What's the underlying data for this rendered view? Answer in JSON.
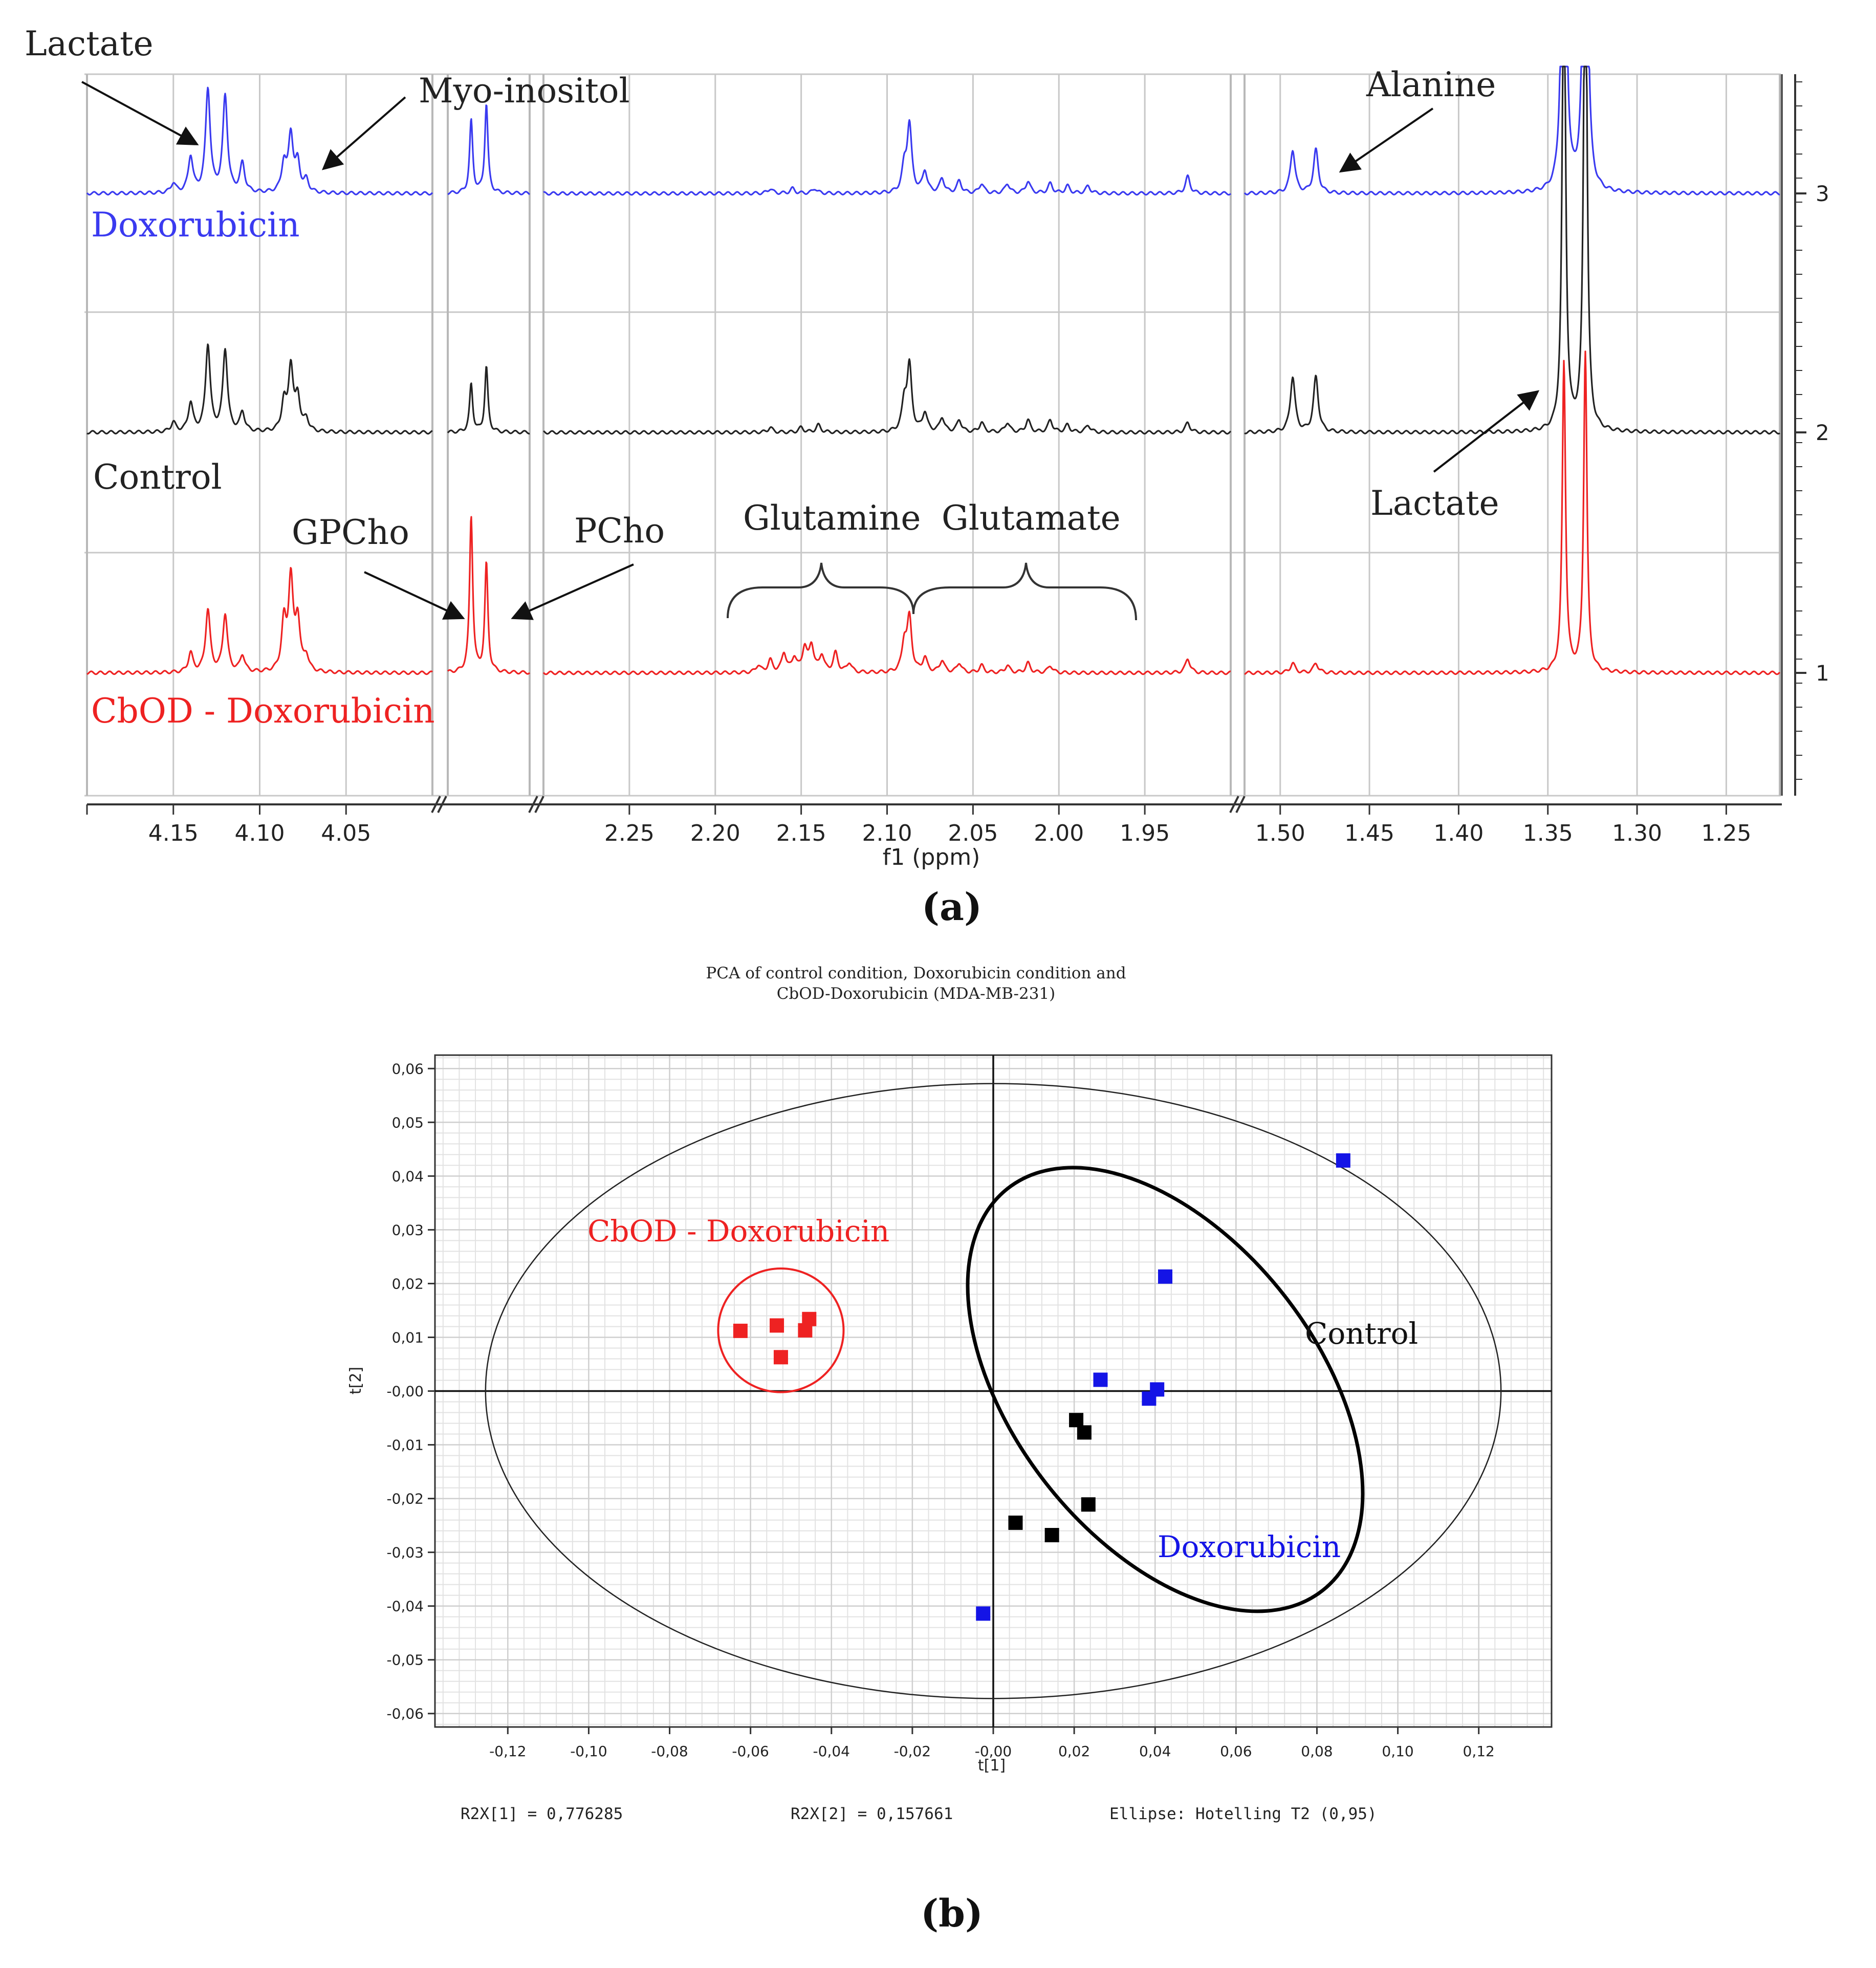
{
  "colors": {
    "doxorubicin": "#3a3af0",
    "control": "#222222",
    "cbod": "#ee2222",
    "grid": "#c8c8c8",
    "axis": "#000000"
  },
  "chart_data": [
    {
      "id": "a",
      "type": "line",
      "panel_label": "(a)",
      "xlabel": "f1 (ppm)",
      "segments": [
        {
          "name": "seg1",
          "range": [
            4.2,
            4.0
          ],
          "ticks": [
            4.15,
            4.1,
            4.05
          ],
          "tick_labels": [
            "4.15",
            "4.10",
            "4.05"
          ]
        },
        {
          "name": "seg2",
          "range": [
            3.65,
            3.58
          ],
          "ticks": [],
          "tick_labels": []
        },
        {
          "name": "seg3",
          "range": [
            2.3,
            1.9
          ],
          "ticks": [
            2.25,
            2.2,
            2.15,
            2.1,
            2.05,
            2.0,
            1.95
          ],
          "tick_labels": [
            "2.25",
            "2.20",
            "2.15",
            "2.10",
            "2.05",
            "2.00",
            "1.95"
          ]
        },
        {
          "name": "seg4",
          "range": [
            1.52,
            1.22
          ],
          "ticks": [
            1.5,
            1.45,
            1.4,
            1.35,
            1.3,
            1.25
          ],
          "tick_labels": [
            "1.50",
            "1.45",
            "1.40",
            "1.35",
            "1.30",
            "1.25"
          ]
        }
      ],
      "right_axis_labels": [
        "3",
        "2",
        "1"
      ],
      "series": [
        {
          "name": "Doxorubicin",
          "label": "Doxorubicin",
          "color": "#3a3af0",
          "offset": 3,
          "peaks": [
            {
              "seg": 0,
              "ppm": 4.15,
              "h": 0.04
            },
            {
              "seg": 0,
              "ppm": 4.14,
              "h": 0.15
            },
            {
              "seg": 0,
              "ppm": 4.13,
              "h": 0.43
            },
            {
              "seg": 0,
              "ppm": 4.12,
              "h": 0.4
            },
            {
              "seg": 0,
              "ppm": 4.11,
              "h": 0.12
            },
            {
              "seg": 0,
              "ppm": 4.086,
              "h": 0.12
            },
            {
              "seg": 0,
              "ppm": 4.082,
              "h": 0.24
            },
            {
              "seg": 0,
              "ppm": 4.078,
              "h": 0.12
            },
            {
              "seg": 0,
              "ppm": 4.073,
              "h": 0.05
            },
            {
              "seg": 1,
              "ppm": 3.63,
              "h": 0.3
            },
            {
              "seg": 1,
              "ppm": 3.617,
              "h": 0.37
            },
            {
              "seg": 2,
              "ppm": 2.168,
              "h": 0.02
            },
            {
              "seg": 2,
              "ppm": 2.155,
              "h": 0.02
            },
            {
              "seg": 2,
              "ppm": 2.142,
              "h": 0.02
            },
            {
              "seg": 2,
              "ppm": 2.09,
              "h": 0.1
            },
            {
              "seg": 2,
              "ppm": 2.087,
              "h": 0.28
            },
            {
              "seg": 2,
              "ppm": 2.078,
              "h": 0.09
            },
            {
              "seg": 2,
              "ppm": 2.068,
              "h": 0.06
            },
            {
              "seg": 2,
              "ppm": 2.058,
              "h": 0.05
            },
            {
              "seg": 2,
              "ppm": 2.045,
              "h": 0.04
            },
            {
              "seg": 2,
              "ppm": 2.03,
              "h": 0.04
            },
            {
              "seg": 2,
              "ppm": 2.018,
              "h": 0.05
            },
            {
              "seg": 2,
              "ppm": 2.005,
              "h": 0.04
            },
            {
              "seg": 2,
              "ppm": 1.995,
              "h": 0.03
            },
            {
              "seg": 2,
              "ppm": 1.983,
              "h": 0.03
            },
            {
              "seg": 2,
              "ppm": 1.925,
              "h": 0.07
            },
            {
              "seg": 3,
              "ppm": 1.493,
              "h": 0.18
            },
            {
              "seg": 3,
              "ppm": 1.48,
              "h": 0.18
            },
            {
              "seg": 3,
              "ppm": 1.341,
              "h": 2.6
            },
            {
              "seg": 3,
              "ppm": 1.329,
              "h": 2.7
            }
          ]
        },
        {
          "name": "Control",
          "label": "Control",
          "color": "#222222",
          "offset": 2,
          "peaks": [
            {
              "seg": 0,
              "ppm": 4.15,
              "h": 0.04
            },
            {
              "seg": 0,
              "ppm": 4.14,
              "h": 0.12
            },
            {
              "seg": 0,
              "ppm": 4.13,
              "h": 0.36
            },
            {
              "seg": 0,
              "ppm": 4.12,
              "h": 0.34
            },
            {
              "seg": 0,
              "ppm": 4.11,
              "h": 0.08
            },
            {
              "seg": 0,
              "ppm": 4.086,
              "h": 0.12
            },
            {
              "seg": 0,
              "ppm": 4.082,
              "h": 0.27
            },
            {
              "seg": 0,
              "ppm": 4.078,
              "h": 0.14
            },
            {
              "seg": 0,
              "ppm": 4.073,
              "h": 0.05
            },
            {
              "seg": 1,
              "ppm": 3.63,
              "h": 0.2
            },
            {
              "seg": 1,
              "ppm": 3.617,
              "h": 0.27
            },
            {
              "seg": 2,
              "ppm": 2.168,
              "h": 0.02
            },
            {
              "seg": 2,
              "ppm": 2.15,
              "h": 0.02
            },
            {
              "seg": 2,
              "ppm": 2.14,
              "h": 0.03
            },
            {
              "seg": 2,
              "ppm": 2.09,
              "h": 0.12
            },
            {
              "seg": 2,
              "ppm": 2.087,
              "h": 0.27
            },
            {
              "seg": 2,
              "ppm": 2.078,
              "h": 0.08
            },
            {
              "seg": 2,
              "ppm": 2.068,
              "h": 0.06
            },
            {
              "seg": 2,
              "ppm": 2.058,
              "h": 0.05
            },
            {
              "seg": 2,
              "ppm": 2.045,
              "h": 0.04
            },
            {
              "seg": 2,
              "ppm": 2.03,
              "h": 0.04
            },
            {
              "seg": 2,
              "ppm": 2.018,
              "h": 0.05
            },
            {
              "seg": 2,
              "ppm": 2.005,
              "h": 0.05
            },
            {
              "seg": 2,
              "ppm": 1.995,
              "h": 0.03
            },
            {
              "seg": 2,
              "ppm": 1.983,
              "h": 0.03
            },
            {
              "seg": 2,
              "ppm": 1.925,
              "h": 0.04
            },
            {
              "seg": 3,
              "ppm": 1.493,
              "h": 0.23
            },
            {
              "seg": 3,
              "ppm": 1.48,
              "h": 0.23
            },
            {
              "seg": 3,
              "ppm": 1.341,
              "h": 2.1
            },
            {
              "seg": 3,
              "ppm": 1.329,
              "h": 2.3
            }
          ]
        },
        {
          "name": "CbOD - Doxorubicin",
          "label": "CbOD - Doxorubicin",
          "color": "#ee2222",
          "offset": 1,
          "peaks": [
            {
              "seg": 0,
              "ppm": 4.14,
              "h": 0.08
            },
            {
              "seg": 0,
              "ppm": 4.13,
              "h": 0.26
            },
            {
              "seg": 0,
              "ppm": 4.12,
              "h": 0.24
            },
            {
              "seg": 0,
              "ppm": 4.11,
              "h": 0.07
            },
            {
              "seg": 0,
              "ppm": 4.086,
              "h": 0.2
            },
            {
              "seg": 0,
              "ppm": 4.082,
              "h": 0.38
            },
            {
              "seg": 0,
              "ppm": 4.078,
              "h": 0.21
            },
            {
              "seg": 0,
              "ppm": 4.073,
              "h": 0.06
            },
            {
              "seg": 1,
              "ppm": 3.63,
              "h": 0.65
            },
            {
              "seg": 1,
              "ppm": 3.617,
              "h": 0.45
            },
            {
              "seg": 2,
              "ppm": 2.175,
              "h": 0.03
            },
            {
              "seg": 2,
              "ppm": 2.168,
              "h": 0.05
            },
            {
              "seg": 2,
              "ppm": 2.16,
              "h": 0.08
            },
            {
              "seg": 2,
              "ppm": 2.154,
              "h": 0.06
            },
            {
              "seg": 2,
              "ppm": 2.148,
              "h": 0.1
            },
            {
              "seg": 2,
              "ppm": 2.144,
              "h": 0.11
            },
            {
              "seg": 2,
              "ppm": 2.138,
              "h": 0.07
            },
            {
              "seg": 2,
              "ppm": 2.13,
              "h": 0.08
            },
            {
              "seg": 2,
              "ppm": 2.122,
              "h": 0.04
            },
            {
              "seg": 2,
              "ppm": 2.09,
              "h": 0.12
            },
            {
              "seg": 2,
              "ppm": 2.087,
              "h": 0.22
            },
            {
              "seg": 2,
              "ppm": 2.078,
              "h": 0.06
            },
            {
              "seg": 2,
              "ppm": 2.068,
              "h": 0.05
            },
            {
              "seg": 2,
              "ppm": 2.058,
              "h": 0.04
            },
            {
              "seg": 2,
              "ppm": 2.045,
              "h": 0.03
            },
            {
              "seg": 2,
              "ppm": 2.03,
              "h": 0.03
            },
            {
              "seg": 2,
              "ppm": 2.018,
              "h": 0.04
            },
            {
              "seg": 2,
              "ppm": 2.005,
              "h": 0.03
            },
            {
              "seg": 2,
              "ppm": 1.925,
              "h": 0.06
            },
            {
              "seg": 3,
              "ppm": 1.493,
              "h": 0.04
            },
            {
              "seg": 3,
              "ppm": 1.48,
              "h": 0.04
            },
            {
              "seg": 3,
              "ppm": 1.341,
              "h": 1.29
            },
            {
              "seg": 3,
              "ppm": 1.329,
              "h": 1.33
            }
          ]
        }
      ],
      "annotations": [
        "Lactate",
        "Myo-inositol",
        "Alanine",
        "Lactate",
        "GPCho",
        "PCho",
        "Glutamine",
        "Glutamate"
      ]
    },
    {
      "id": "b",
      "type": "scatter",
      "panel_label": "(b)",
      "title": "PCA of control condition, Doxorubicin condition and CbOD-Doxorubicin (MDA-MB-231)",
      "title_lines": [
        "PCA of control condition, Doxorubicin condition and",
        "CbOD-Doxorubicin (MDA-MB-231)"
      ],
      "xlabel": "t[1]",
      "ylabel": "t[2]",
      "xlim": [
        -0.138,
        0.138
      ],
      "ylim": [
        -0.0625,
        0.0625
      ],
      "xticks": [
        -0.12,
        -0.1,
        -0.08,
        -0.06,
        -0.04,
        -0.02,
        0.0,
        0.02,
        0.04,
        0.06,
        0.08,
        0.1,
        0.12
      ],
      "xtick_labels": [
        "-0,12",
        "-0,10",
        "-0,08",
        "-0,06",
        "-0,04",
        "-0,02",
        "-0,00",
        "0,02",
        "0,04",
        "0,06",
        "0,08",
        "0,10",
        "0,12"
      ],
      "yticks": [
        0.06,
        0.05,
        0.04,
        0.03,
        0.02,
        0.01,
        0.0,
        -0.01,
        -0.02,
        -0.03,
        -0.04,
        -0.05,
        -0.06
      ],
      "ytick_labels": [
        "0,06",
        "0,05",
        "0,04",
        "0,03",
        "0,02",
        "0,01",
        "-0,00",
        "-0,01",
        "-0,02",
        "-0,03",
        "-0,04",
        "-0,05",
        "-0,06"
      ],
      "grid": true,
      "series": [
        {
          "name": "CbOD - Doxorubicin",
          "label": "CbOD - Doxorubicin",
          "color": "#ee2222",
          "x": [
            -0.0625,
            -0.0535,
            -0.0455,
            -0.0465,
            -0.0525
          ],
          "y": [
            0.0112,
            0.0122,
            0.0134,
            0.0113,
            0.0063
          ]
        },
        {
          "name": "Doxorubicin",
          "label": "Doxorubicin",
          "color": "#1414e6",
          "x": [
            0.0865,
            0.0425,
            0.0265,
            0.0405,
            0.0385,
            -0.0025
          ],
          "y": [
            0.0429,
            0.0213,
            0.0021,
            0.0003,
            -0.0014,
            -0.0414
          ]
        },
        {
          "name": "Control",
          "label": "Control",
          "color": "#000000",
          "x": [
            0.0205,
            0.0225,
            0.0055,
            0.0145,
            0.0235
          ],
          "y": [
            -0.0054,
            -0.0077,
            -0.0245,
            -0.0268,
            -0.0211
          ]
        }
      ],
      "hotelling_ellipse": {
        "cx": 0.0,
        "cy": 0.0,
        "rx": 0.1255,
        "ry": 0.0572
      },
      "group_ellipses": [
        {
          "name": "Control",
          "color": "#000000",
          "cx": 0.0425,
          "cy": 0.0003,
          "rx": 0.0375,
          "ry": 0.0475,
          "rotate_deg": 38
        },
        {
          "name": "CbOD - Doxorubicin",
          "color": "#ee2222",
          "cx": -0.0525,
          "cy": 0.0113,
          "rx": 0.0155,
          "ry": 0.0115,
          "rotate_deg": 0
        }
      ],
      "footer": {
        "r2x1": "R2X[1] = 0,776285",
        "r2x2": "R2X[2] = 0,157661",
        "ellipse": "Ellipse: Hotelling T2 (0,95)"
      }
    }
  ]
}
